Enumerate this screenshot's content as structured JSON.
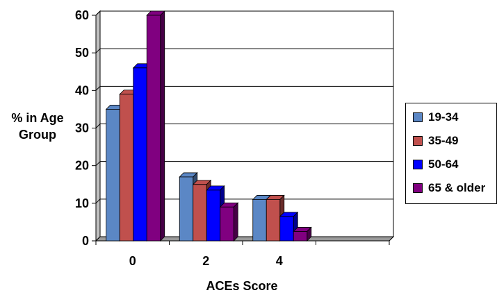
{
  "chart_data": {
    "type": "bar",
    "categories": [
      "0",
      "2",
      "4",
      ""
    ],
    "series": [
      {
        "name": "19-34",
        "values": [
          35,
          17,
          11,
          0
        ],
        "color": "#5b87c5"
      },
      {
        "name": "35-49",
        "values": [
          39,
          15,
          11,
          0
        ],
        "color": "#c0504d"
      },
      {
        "name": "50-64",
        "values": [
          46,
          13.5,
          6.5,
          0
        ],
        "color": "#0000ff"
      },
      {
        "name": "65 & older",
        "values": [
          60,
          9,
          2.5,
          0
        ],
        "color": "#800080"
      }
    ],
    "xlabel": "ACEs Score",
    "ylabel": "% in Age Group",
    "ylim": [
      0,
      60
    ],
    "yticks": [
      "0",
      "10",
      "20",
      "30",
      "40",
      "50",
      "60"
    ],
    "grid": true,
    "legend_placement": "right",
    "style": "3d-clustered-column"
  }
}
